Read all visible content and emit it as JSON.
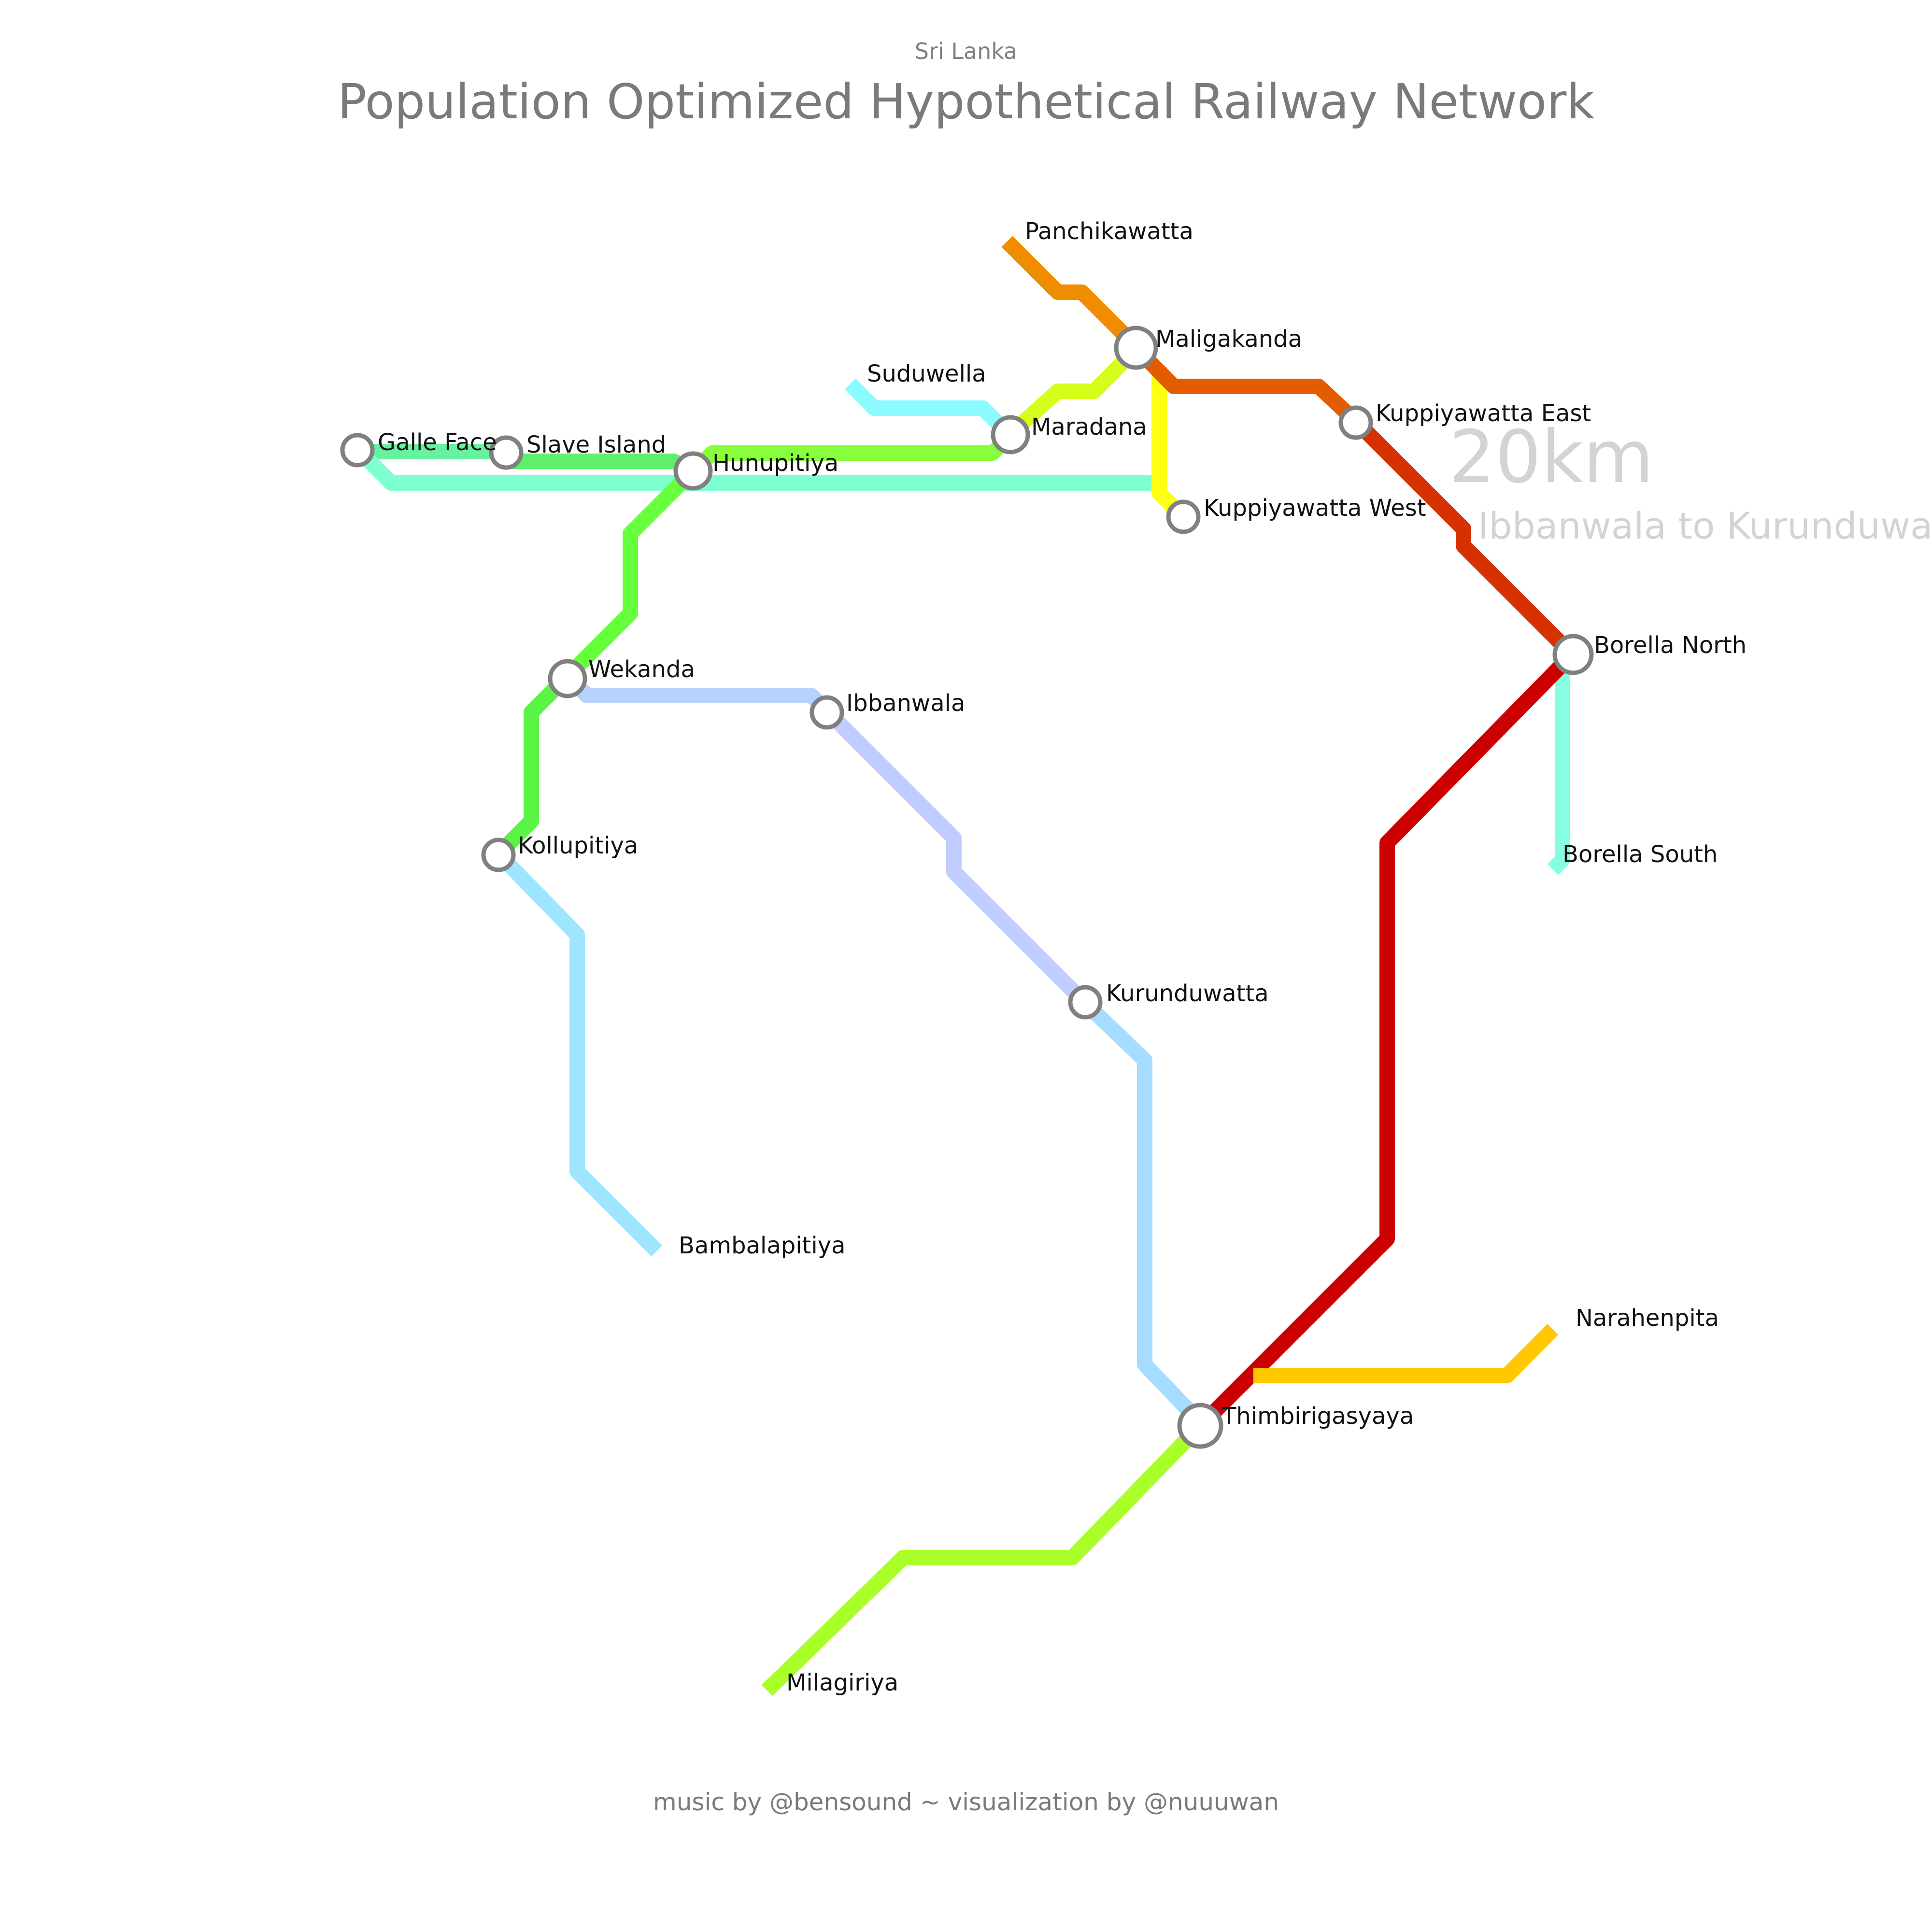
{
  "header": {
    "subtitle": "Sri Lanka",
    "title": "Population Optimized Hypothetical Railway Network"
  },
  "overlay": {
    "distance": "20km",
    "route": "Ibbanwala to Kurunduwatta"
  },
  "footer": {
    "credit": "music by @bensound ~ visualization by @nuuuwan"
  },
  "stations": [
    {
      "id": "galle-face",
      "label": "Galle Face",
      "interchange": true
    },
    {
      "id": "slave-island",
      "label": "Slave Island",
      "interchange": true
    },
    {
      "id": "hunupitiya",
      "label": "Hunupitiya",
      "interchange": true
    },
    {
      "id": "suduwella",
      "label": "Suduwella",
      "interchange": false
    },
    {
      "id": "maradana",
      "label": "Maradana",
      "interchange": true
    },
    {
      "id": "panchikawatta",
      "label": "Panchikawatta",
      "interchange": false
    },
    {
      "id": "maligakanda",
      "label": "Maligakanda",
      "interchange": true
    },
    {
      "id": "kuppiyawatta-east",
      "label": "Kuppiyawatta East",
      "interchange": true
    },
    {
      "id": "kuppiyawatta-west",
      "label": "Kuppiyawatta West",
      "interchange": true
    },
    {
      "id": "borella-north",
      "label": "Borella North",
      "interchange": true
    },
    {
      "id": "borella-south",
      "label": "Borella South",
      "interchange": false
    },
    {
      "id": "wekanda",
      "label": "Wekanda",
      "interchange": true
    },
    {
      "id": "ibbanwala",
      "label": "Ibbanwala",
      "interchange": true
    },
    {
      "id": "kollupitiya",
      "label": "Kollupitiya",
      "interchange": true
    },
    {
      "id": "bambalapitiya",
      "label": "Bambalapitiya",
      "interchange": false
    },
    {
      "id": "kurunduwatta",
      "label": "Kurunduwatta",
      "interchange": true
    },
    {
      "id": "thimbirigasyaya",
      "label": "Thimbirigasyaya",
      "interchange": true
    },
    {
      "id": "narahenpita",
      "label": "Narahenpita",
      "interchange": false
    },
    {
      "id": "milagiriya",
      "label": "Milagiriya",
      "interchange": false
    }
  ],
  "lines": [
    {
      "id": "galleface-slaveisland",
      "color": "#66f2a0"
    },
    {
      "id": "slaveisland-hunupitiya",
      "color": "#5ef06a"
    },
    {
      "id": "galleface-kuppiyawattawest",
      "color": "#7dffd0"
    },
    {
      "id": "hunupitiya-maradana",
      "color": "#88ff3c"
    },
    {
      "id": "suduwella-maradana",
      "color": "#8cfbff"
    },
    {
      "id": "maradana-maligakanda",
      "color": "#d4ff1a"
    },
    {
      "id": "panchikawatta-maligakanda",
      "color": "#f08c00"
    },
    {
      "id": "maligakanda-kuppiyawattawest",
      "color": "#ffff14"
    },
    {
      "id": "maligakanda-kuppiyawattaeast",
      "color": "#e35d00"
    },
    {
      "id": "kuppiyawattaeast-borellanorth",
      "color": "#d63100"
    },
    {
      "id": "borellanorth-borellasouth",
      "color": "#86ffe0"
    },
    {
      "id": "borellanorth-thimbirigasyaya",
      "color": "#cc0000"
    },
    {
      "id": "hunupitiya-wekanda",
      "color": "#66ff3c"
    },
    {
      "id": "wekanda-kollupitiya",
      "color": "#5af544"
    },
    {
      "id": "wekanda-ibbanwala",
      "color": "#b8d2ff"
    },
    {
      "id": "ibbanwala-kurunduwatta",
      "color": "#c2cdff"
    },
    {
      "id": "kollupitiya-bambalapitiya",
      "color": "#9ee6ff"
    },
    {
      "id": "kurunduwatta-thimbirigasyaya",
      "color": "#a6dcff"
    },
    {
      "id": "thimbirigasyaya-narahenpita",
      "color": "#ffc800"
    },
    {
      "id": "thimbirigasyaya-milagiriya",
      "color": "#aaff28"
    }
  ]
}
